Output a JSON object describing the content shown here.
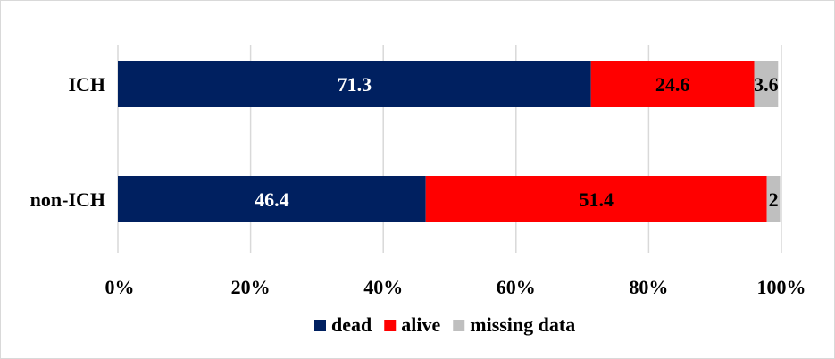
{
  "chart_data": {
    "type": "bar",
    "orientation": "horizontal",
    "stacked": "percent",
    "categories": [
      "ICH",
      "non-ICH"
    ],
    "series": [
      {
        "name": "dead",
        "color": "#002060",
        "label_color": "#ffffff",
        "values": [
          71.3,
          46.4
        ],
        "labels": [
          "71.3",
          "46.4"
        ]
      },
      {
        "name": "alive",
        "color": "#ff0000",
        "label_color": "#000000",
        "values": [
          24.6,
          51.4
        ],
        "labels": [
          "24.6",
          "51.4"
        ]
      },
      {
        "name": "missing data",
        "color": "#bfbfbf",
        "label_color": "#000000",
        "values": [
          3.6,
          2
        ],
        "labels": [
          "3.6",
          "2"
        ]
      }
    ],
    "x_ticks": [
      "0%",
      "20%",
      "40%",
      "60%",
      "80%",
      "100%"
    ],
    "xlim": [
      0,
      100
    ],
    "grid": "vertical",
    "legend_position": "bottom"
  }
}
